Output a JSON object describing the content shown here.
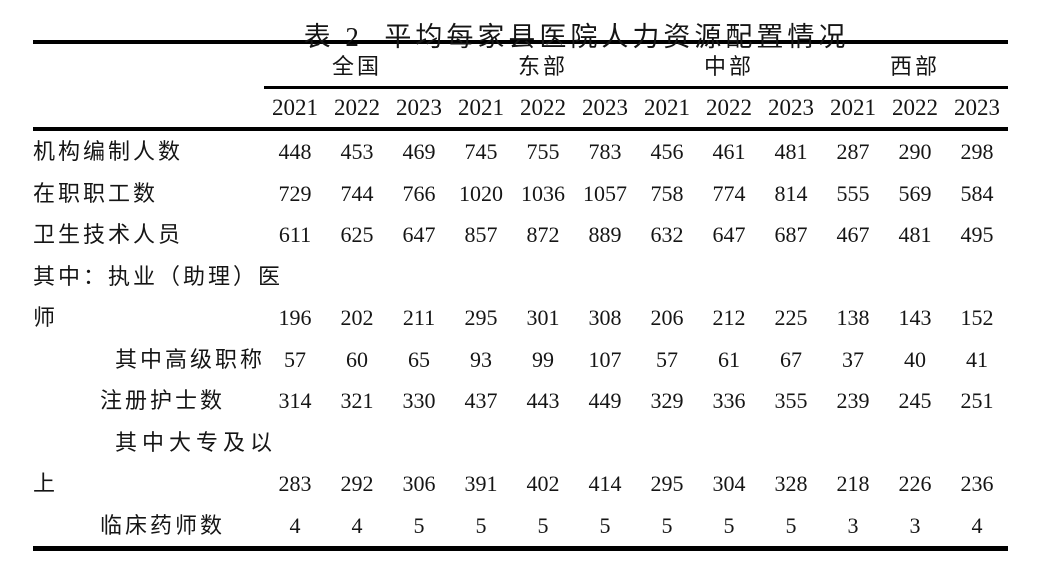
{
  "title": "表 2  平均每家县医院人力资源配置情况",
  "table": {
    "groups": [
      {
        "label": "全国"
      },
      {
        "label": "东部"
      },
      {
        "label": "中部"
      },
      {
        "label": "西部"
      }
    ],
    "years": [
      "2021",
      "2022",
      "2023",
      "2021",
      "2022",
      "2023",
      "2021",
      "2022",
      "2023",
      "2021",
      "2022",
      "2023"
    ],
    "rows": [
      {
        "label": "机构编制人数",
        "indent": 0,
        "values": [
          448,
          453,
          469,
          745,
          755,
          783,
          456,
          461,
          481,
          287,
          290,
          298
        ]
      },
      {
        "label": "在职职工数",
        "indent": 0,
        "values": [
          729,
          744,
          766,
          1020,
          1036,
          1057,
          758,
          774,
          814,
          555,
          569,
          584
        ]
      },
      {
        "label": "卫生技术人员",
        "indent": 0,
        "values": [
          611,
          625,
          647,
          857,
          872,
          889,
          632,
          647,
          687,
          467,
          481,
          495
        ]
      },
      {
        "label": "其中：执业（助理）医师",
        "indent": 0,
        "values": [
          196,
          202,
          211,
          295,
          301,
          308,
          206,
          212,
          225,
          138,
          143,
          152
        ]
      },
      {
        "label": "其中高级职称",
        "indent": 2,
        "values": [
          57,
          60,
          65,
          93,
          99,
          107,
          57,
          61,
          67,
          37,
          40,
          41
        ]
      },
      {
        "label": "注册护士数",
        "indent": 1,
        "values": [
          314,
          321,
          330,
          437,
          443,
          449,
          329,
          336,
          355,
          239,
          245,
          251
        ]
      },
      {
        "label": "其中大专及以上",
        "indent": 2,
        "values": [
          283,
          292,
          306,
          391,
          402,
          414,
          295,
          304,
          328,
          218,
          226,
          236
        ]
      },
      {
        "label": "临床药师数",
        "indent": 1,
        "values": [
          4,
          4,
          5,
          5,
          5,
          5,
          5,
          5,
          5,
          3,
          3,
          4
        ]
      }
    ]
  }
}
